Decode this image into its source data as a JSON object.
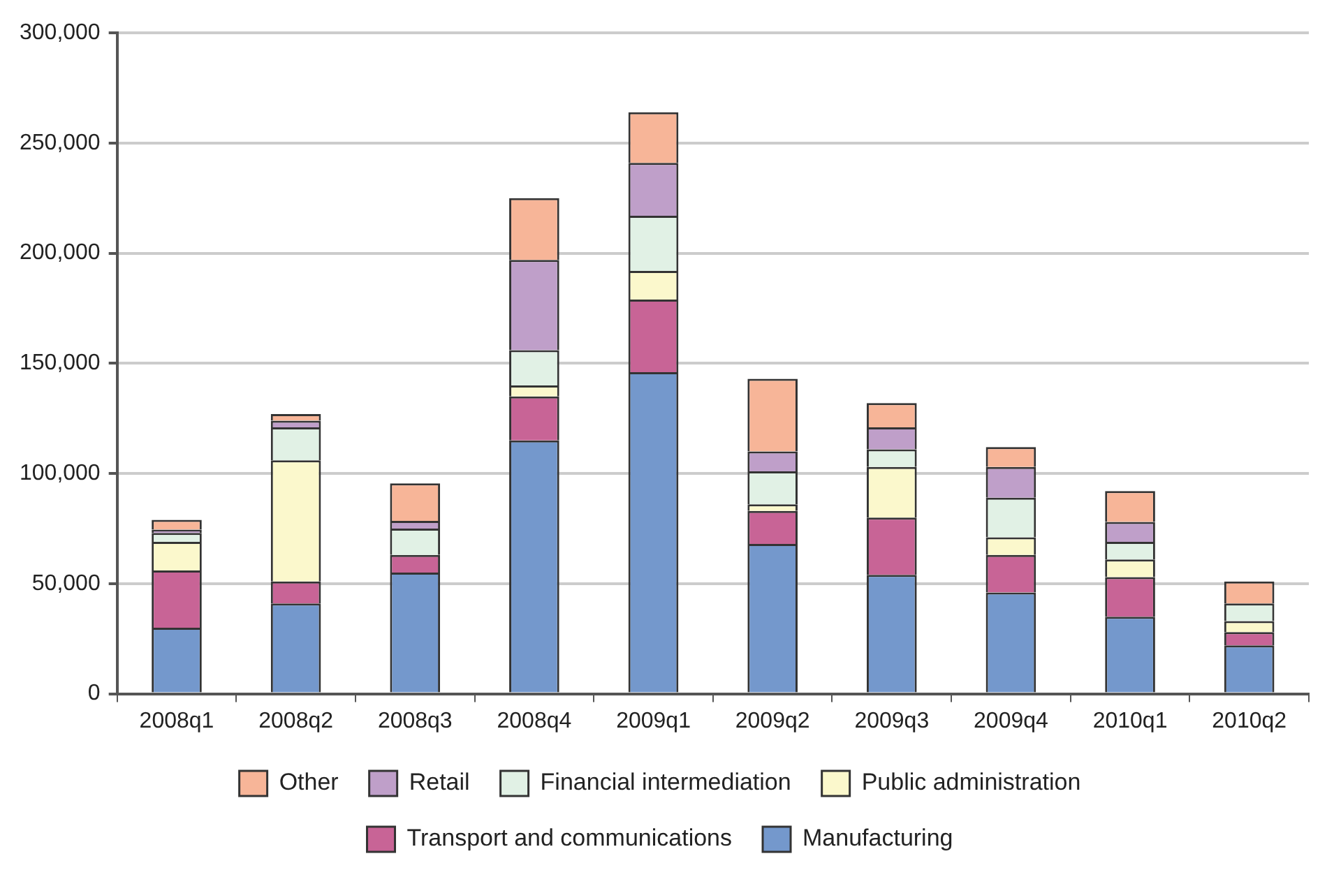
{
  "chart_data": {
    "type": "bar",
    "stacked": true,
    "categories": [
      "2008q1",
      "2008q2",
      "2008q3",
      "2008q4",
      "2009q1",
      "2009q2",
      "2009q3",
      "2009q4",
      "2010q1",
      "2010q2"
    ],
    "series": [
      {
        "name": "Manufacturing",
        "color": "#7498cc",
        "values": [
          30000,
          41000,
          55000,
          115000,
          146000,
          68000,
          54000,
          46000,
          35000,
          22000
        ]
      },
      {
        "name": "Transport and communications",
        "color": "#c86496",
        "values": [
          26000,
          10000,
          8000,
          20000,
          33000,
          15000,
          26000,
          17000,
          18000,
          6000
        ]
      },
      {
        "name": "Public administration",
        "color": "#fbf8cc",
        "values": [
          13000,
          55000,
          0,
          5000,
          13000,
          3000,
          23000,
          8000,
          8000,
          5000
        ]
      },
      {
        "name": "Financial intermediation",
        "color": "#e1f1e5",
        "values": [
          4000,
          15000,
          12000,
          16000,
          25000,
          15000,
          8000,
          18000,
          8000,
          8000
        ]
      },
      {
        "name": "Retail",
        "color": "#bf9fc9",
        "values": [
          1500,
          3000,
          3500,
          41000,
          24000,
          9000,
          10000,
          14000,
          9000,
          0
        ]
      },
      {
        "name": "Other",
        "color": "#f7b598",
        "values": [
          4500,
          3000,
          17000,
          28000,
          23000,
          33000,
          11000,
          9000,
          14000,
          10000
        ]
      }
    ],
    "ylim": [
      0,
      300000
    ],
    "yticks": [
      {
        "value": 0,
        "label": "0"
      },
      {
        "value": 50000,
        "label": "50,000"
      },
      {
        "value": 100000,
        "label": "100,000"
      },
      {
        "value": 150000,
        "label": "150,000"
      },
      {
        "value": 200000,
        "label": "200,000"
      },
      {
        "value": 250000,
        "label": "250,000"
      },
      {
        "value": 300000,
        "label": "300,000"
      }
    ],
    "grid": "y",
    "legend": "bottom"
  }
}
